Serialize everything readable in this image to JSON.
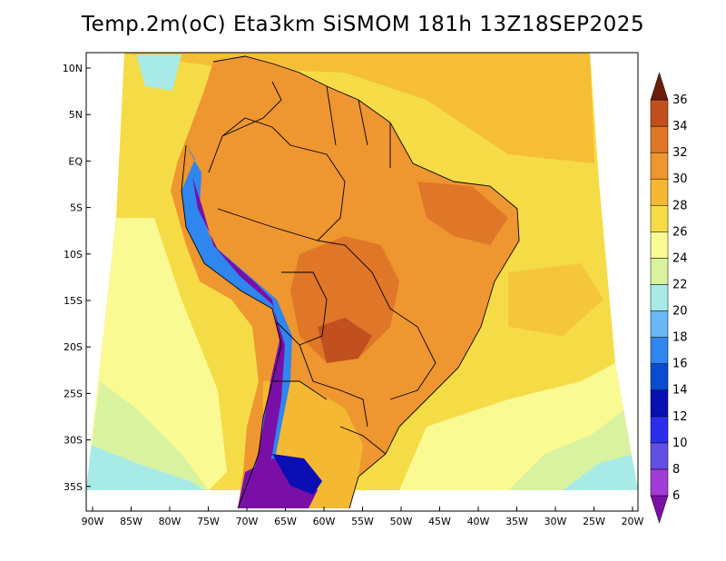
{
  "title": "Temp.2m(oC) Eta3km SiSMOM 181h 13Z18SEP2025",
  "map": {
    "lat_labels": [
      "10N",
      "5N",
      "EQ",
      "5S",
      "10S",
      "15S",
      "20S",
      "25S",
      "30S",
      "35S"
    ],
    "lon_labels": [
      "90W",
      "85W",
      "80W",
      "75W",
      "70W",
      "65W",
      "60W",
      "55W",
      "50W",
      "45W",
      "40W",
      "35W",
      "30W",
      "25W",
      "20W"
    ]
  },
  "colorbar": {
    "labels": [
      "6",
      "8",
      "10",
      "12",
      "14",
      "16",
      "18",
      "20",
      "22",
      "24",
      "26",
      "28",
      "30",
      "32",
      "34",
      "36"
    ],
    "colors": [
      "#7a0fa8",
      "#a33bd6",
      "#6050e6",
      "#2d2df0",
      "#0a0fb4",
      "#0a4bd2",
      "#2e86ee",
      "#6ab8f4",
      "#a8ebe6",
      "#d9f2a0",
      "#fafa92",
      "#f5dc46",
      "#f5b832",
      "#ee9630",
      "#e07628",
      "#c2501e",
      "#963214",
      "#6b1e0a"
    ]
  }
}
